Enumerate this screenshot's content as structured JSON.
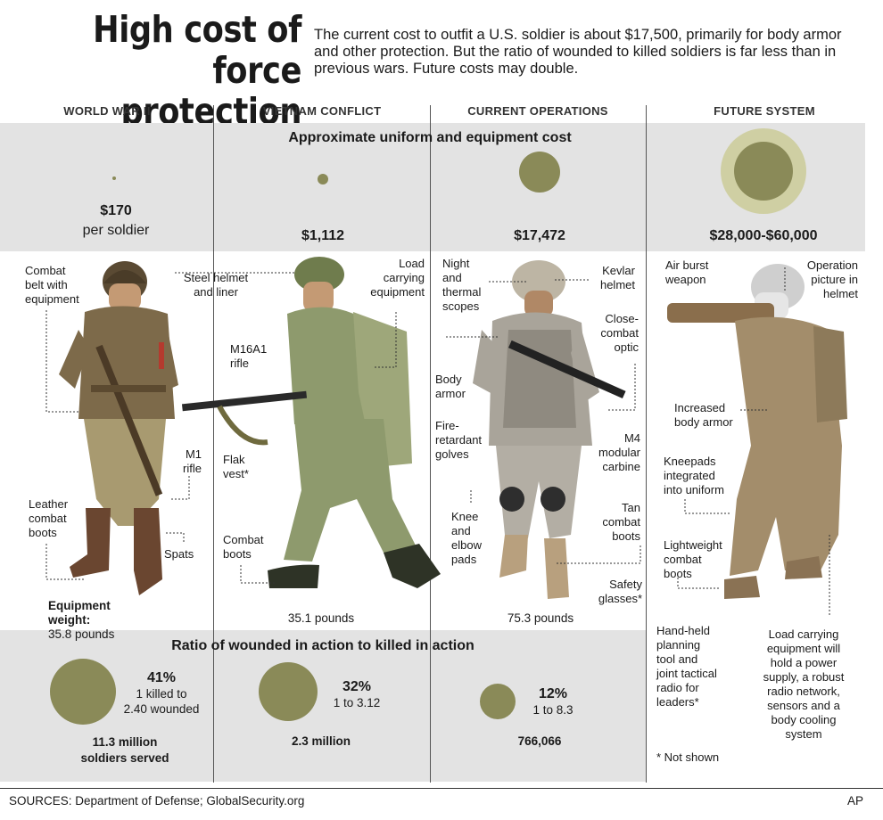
{
  "title": "High cost of force protection",
  "intro": "The current cost to outfit a U.S. soldier is about $17,500, primarily for body armor and other protection. But the ratio of wounded to killed soldiers is far less than in previous wars. Future costs may double.",
  "columns": [
    {
      "heading": "WORLD WAR II",
      "cost": "$170",
      "cost_sub": "per soldier",
      "weight_label": "Equipment weight:",
      "weight": "35.8 pounds",
      "ratio_pct": "41%",
      "ratio_text_1": "1 killed to",
      "ratio_text_2": "2.40 wounded",
      "served_1": "11.3 million",
      "served_2": "soldiers served"
    },
    {
      "heading": "VIETNAM CONFLICT",
      "cost": "$1,112",
      "weight": "35.1 pounds",
      "ratio_pct": "32%",
      "ratio_text_1": "1 to 3.12",
      "served_1": "2.3 million"
    },
    {
      "heading": "CURRENT OPERATIONS",
      "cost": "$17,472",
      "weight": "75.3 pounds",
      "ratio_pct": "12%",
      "ratio_text_1": "1 to 8.3",
      "served_1": "766,066"
    },
    {
      "heading": "FUTURE SYSTEM",
      "cost": "$28,000-$60,000"
    }
  ],
  "band_titles": {
    "cost": "Approximate uniform and equipment cost",
    "ratio": "Ratio of wounded in action to killed in action"
  },
  "labels": {
    "ww2": {
      "belt": [
        "Combat",
        "belt with",
        "equipment"
      ],
      "rifle": [
        "M1",
        "rifle"
      ],
      "boots": [
        "Leather",
        "combat",
        "boots"
      ],
      "spats": "Spats"
    },
    "vietnam": {
      "helmet": [
        "Steel helmet",
        "and liner"
      ],
      "load": [
        "Load",
        "carrying",
        "equipment"
      ],
      "rifle": [
        "M16A1",
        "rifle"
      ],
      "vest": [
        "Flak",
        "vest*"
      ],
      "boots": [
        "Combat",
        "boots"
      ]
    },
    "current": {
      "scopes": [
        "Night",
        "and",
        "thermal",
        "scopes"
      ],
      "helmet": [
        "Kevlar",
        "helmet"
      ],
      "optic": [
        "Close-",
        "combat",
        "optic"
      ],
      "armor": [
        "Body",
        "armor"
      ],
      "gloves": [
        "Fire-",
        "retardant",
        "golves"
      ],
      "carbine": [
        "M4",
        "modular",
        "carbine"
      ],
      "pads": [
        "Knee",
        "and",
        "elbow",
        "pads"
      ],
      "boots": [
        "Tan",
        "combat",
        "boots"
      ],
      "glasses": [
        "Safety",
        "glasses*"
      ]
    },
    "future": {
      "weapon": [
        "Air burst",
        "weapon"
      ],
      "picture": [
        "Operation",
        "picture in",
        "helmet"
      ],
      "armor": [
        "Increased",
        "body armor"
      ],
      "kneepads": [
        "Kneepads",
        "integrated",
        "into uniform"
      ],
      "boots": [
        "Lightweight",
        "combat",
        "boots"
      ],
      "tool": [
        "Hand-held",
        "planning",
        "tool and",
        "joint tactical",
        "radio for",
        "leaders*"
      ],
      "load": [
        "Load carrying",
        "equipment will",
        "hold a power",
        "supply, a robust",
        "radio network,",
        "sensors and a",
        "body cooling",
        "system"
      ],
      "note": "* Not shown"
    }
  },
  "chart_data": {
    "type": "bubble",
    "series": [
      {
        "name": "Approximate uniform and equipment cost",
        "categories": [
          "WORLD WAR II",
          "VIETNAM CONFLICT",
          "CURRENT OPERATIONS",
          "FUTURE SYSTEM"
        ],
        "values": [
          170,
          1112,
          17472,
          [
            28000,
            60000
          ]
        ]
      },
      {
        "name": "Ratio of wounded in action to killed in action",
        "categories": [
          "WORLD WAR II",
          "VIETNAM CONFLICT",
          "CURRENT OPERATIONS"
        ],
        "values": [
          41,
          32,
          12
        ]
      }
    ]
  },
  "footer": {
    "sources": "SOURCES: Department of Defense; GlobalSecurity.org",
    "credit": "AP"
  },
  "colors": {
    "bubble": "#8a8a58",
    "bubble_outer": "#cfcfa3",
    "band": "#e3e3e3",
    "khaki": "#7d6a4a",
    "olive": "#8e9a6d",
    "camo": "#a9a49a",
    "desert": "#b8a07e"
  }
}
